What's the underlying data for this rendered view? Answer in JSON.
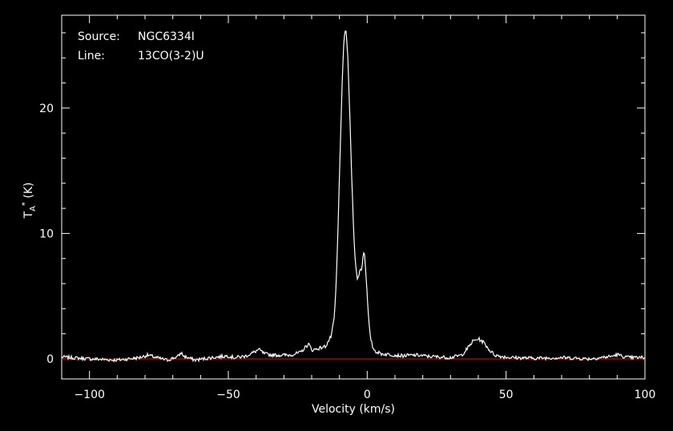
{
  "chart_data": {
    "type": "line",
    "annotations": [
      {
        "label": "Source:",
        "value": "NGC6334I"
      },
      {
        "label": "Line:",
        "value": "13CO(3-2)U"
      }
    ],
    "xlabel": "Velocity (km/s)",
    "ylabel": "T_A* (K)",
    "ylabel_parts": {
      "base": "T",
      "sub": "A",
      "sup": "*",
      "unit": " (K)"
    },
    "xlim": [
      -110,
      100
    ],
    "ylim": [
      -1.6,
      27.4
    ],
    "x_ticks": [
      -100,
      -50,
      0,
      50,
      100
    ],
    "x_tick_labels": [
      "−100",
      "−50",
      "0",
      "50",
      "100"
    ],
    "y_ticks": [
      0,
      10,
      20
    ],
    "y_tick_labels": [
      "0",
      "10",
      "20"
    ],
    "grid": false,
    "colors": {
      "background": "#000000",
      "axes": "#ffffff",
      "series": "#ffffff",
      "baseline": "#ff0000"
    },
    "baseline": {
      "y": 0
    },
    "series": [
      {
        "x": [
          -110,
          -100,
          -90,
          -82,
          -79,
          -76,
          -72,
          -68,
          -67,
          -66,
          -62,
          -56,
          -52,
          -50,
          -48,
          -44,
          -41,
          -39,
          -37,
          -34,
          -28,
          -24,
          -22,
          -21,
          -20,
          -18,
          -15,
          -13,
          -12,
          -11.5,
          -11,
          -10.5,
          -10,
          -9.5,
          -9,
          -8.5,
          -8,
          -7.5,
          -7,
          -6.5,
          -6,
          -5.5,
          -5,
          -4.5,
          -4,
          -3.5,
          -3,
          -2.5,
          -2,
          -1.5,
          -1,
          -0.5,
          0,
          0.5,
          1,
          2,
          3,
          5,
          8,
          12,
          18,
          22,
          26,
          30,
          34,
          36,
          38,
          40,
          42,
          44,
          46,
          48,
          52,
          60,
          70,
          80,
          88,
          90,
          92,
          94,
          96,
          100
        ],
        "y": [
          0.15,
          0.0,
          -0.1,
          0.1,
          0.3,
          0.1,
          -0.1,
          0.2,
          0.5,
          0.2,
          -0.1,
          0.1,
          0.2,
          0.25,
          0.1,
          0.2,
          0.5,
          0.75,
          0.4,
          0.3,
          0.3,
          0.5,
          1.0,
          1.2,
          0.7,
          0.8,
          1.0,
          1.8,
          3.0,
          4.5,
          7.0,
          10.5,
          14.5,
          18.5,
          22.0,
          24.8,
          26.3,
          26.0,
          24.0,
          21.0,
          17.5,
          14.0,
          11.0,
          8.5,
          7.0,
          6.4,
          6.6,
          7.3,
          7.0,
          8.3,
          8.5,
          7.0,
          5.0,
          3.2,
          1.9,
          0.9,
          0.6,
          0.4,
          0.35,
          0.25,
          0.3,
          0.2,
          0.15,
          0.1,
          0.3,
          0.8,
          1.4,
          1.6,
          1.3,
          0.7,
          0.3,
          0.2,
          0.1,
          0.05,
          0.1,
          0.0,
          0.2,
          0.35,
          0.2,
          0.1,
          0.1,
          0.1
        ]
      }
    ]
  }
}
